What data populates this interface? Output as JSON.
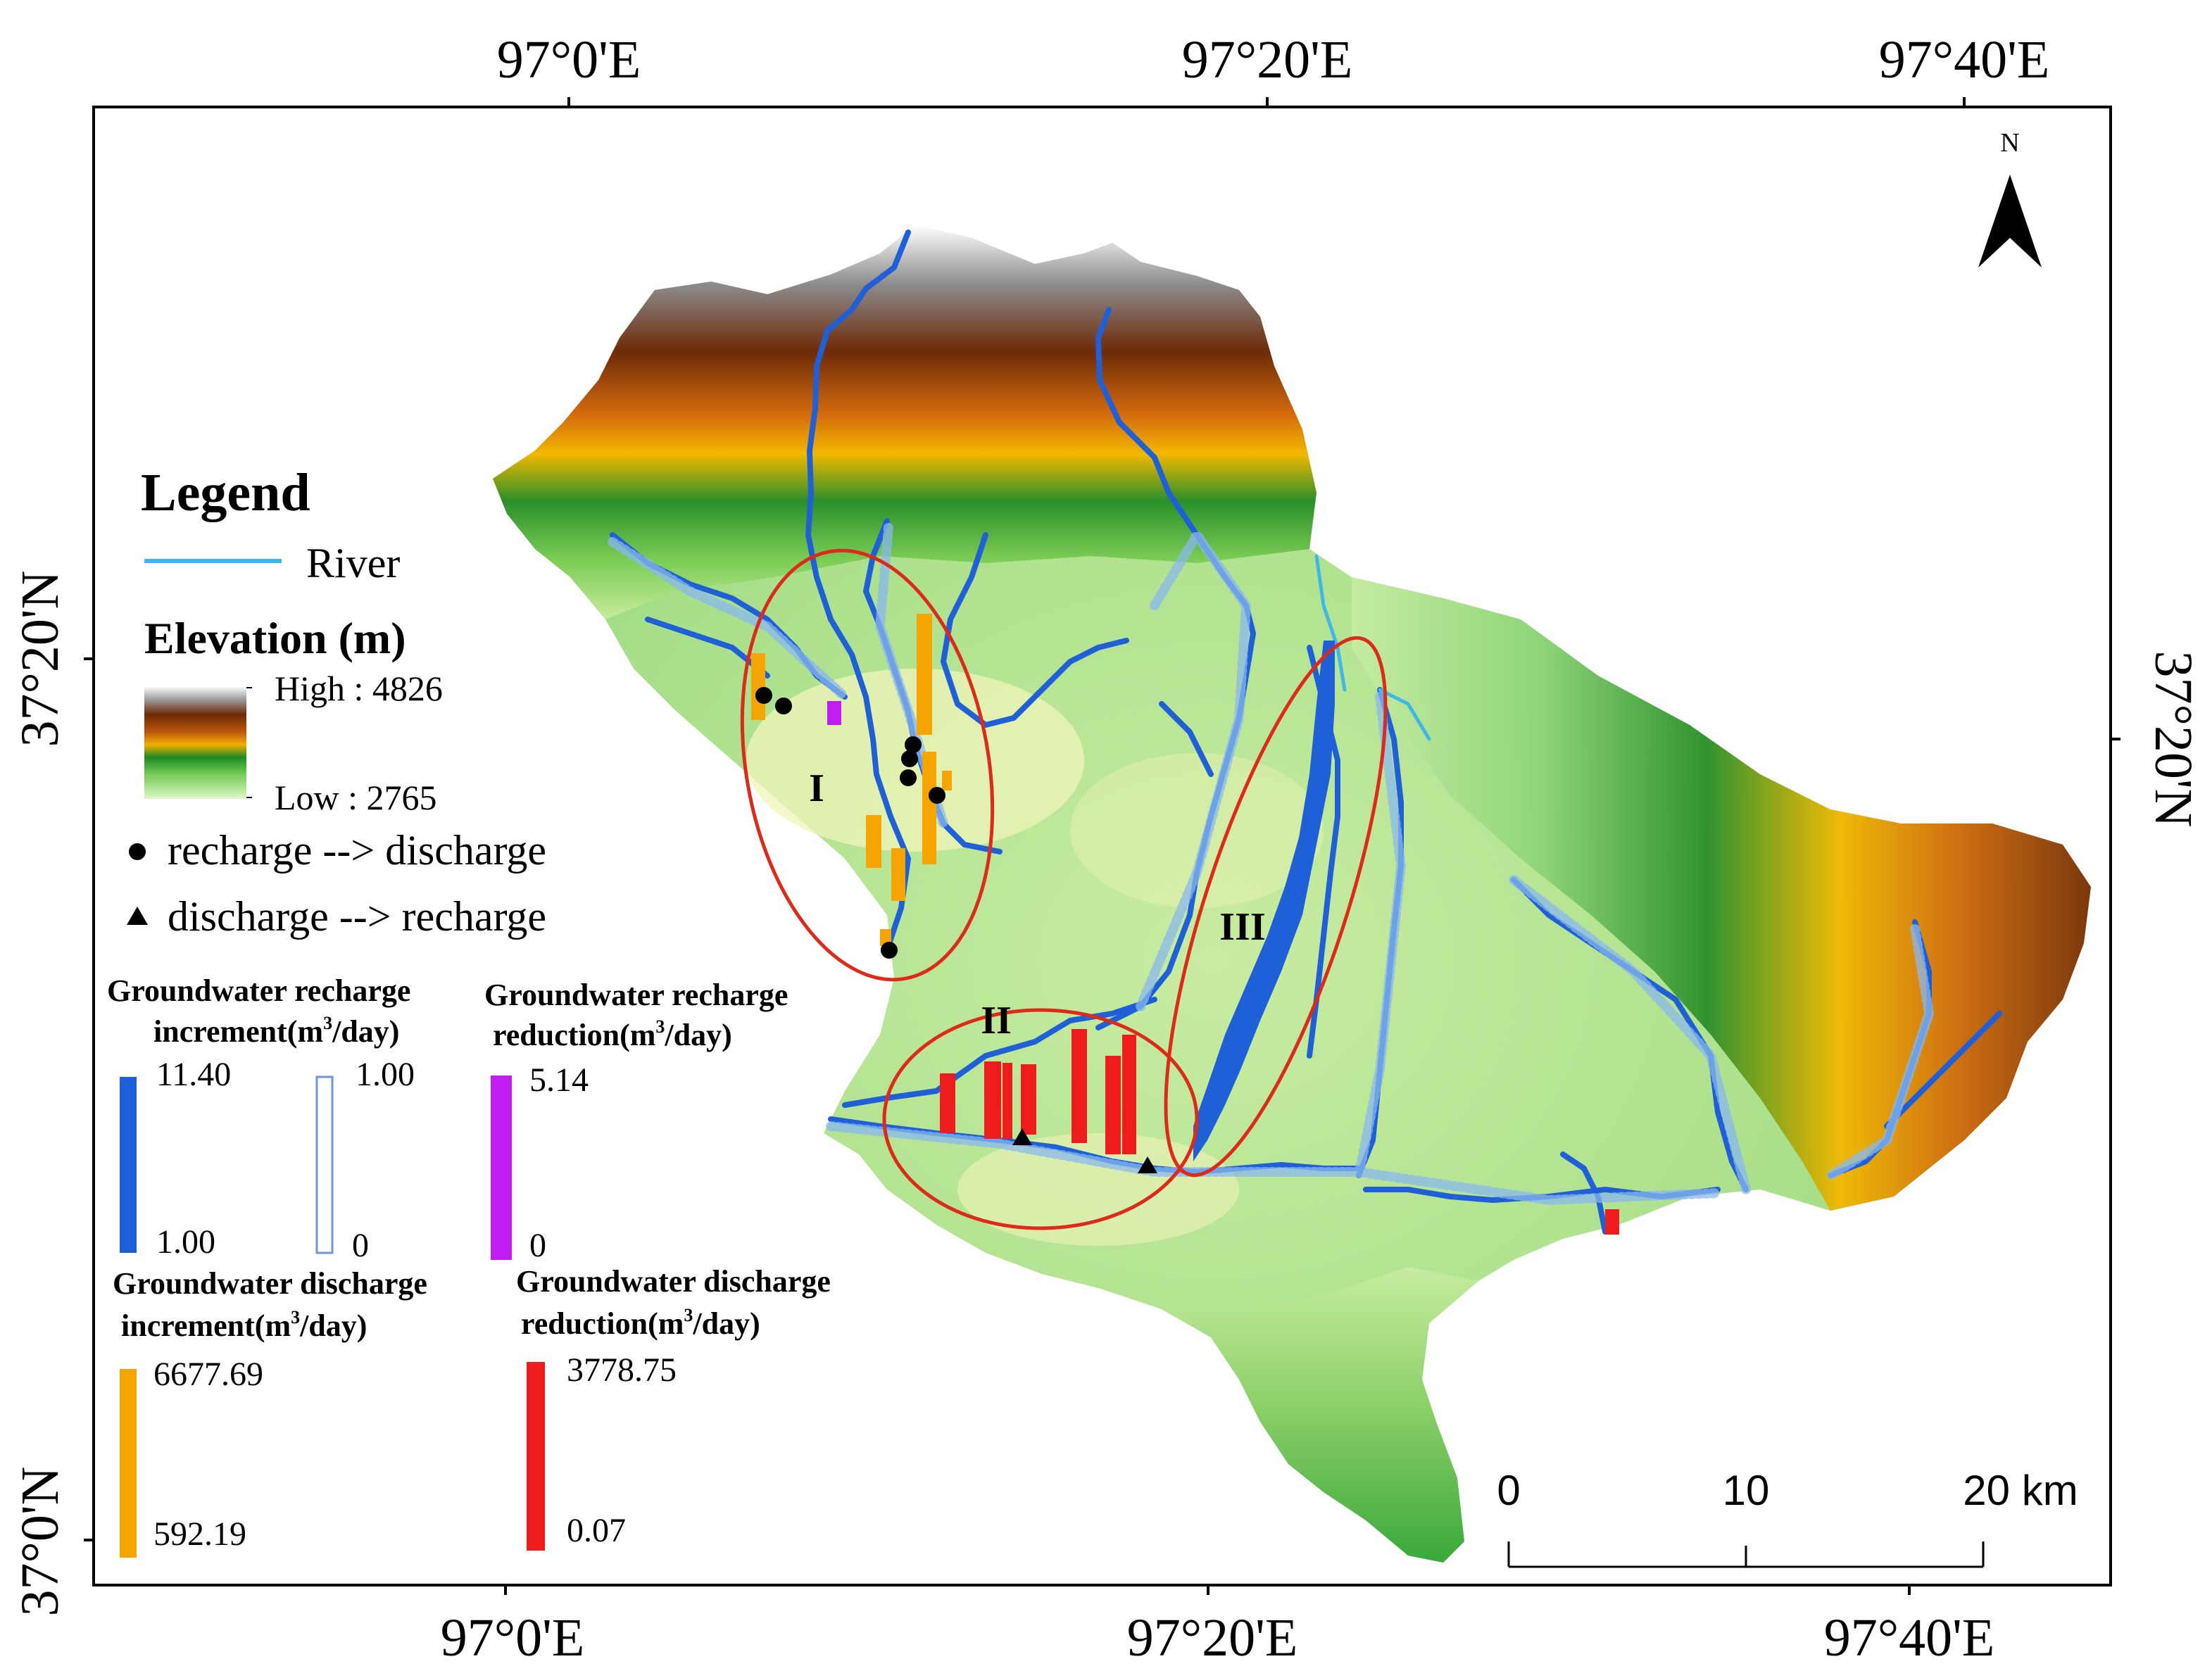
{
  "axes": {
    "top_labels": [
      "97°0'E",
      "97°20'E",
      "97°40'E"
    ],
    "bottom_labels": [
      "97°0'E",
      "97°20'E",
      "97°40'E"
    ],
    "left_labels": [
      "37°20'N",
      "37°0'N"
    ],
    "right_labels": [
      "37°20'N"
    ]
  },
  "north_arrow": {
    "label": "N",
    "icon": "north-arrow-icon"
  },
  "legend": {
    "title": "Legend",
    "river_label": "River",
    "elevation_title": "Elevation (m)",
    "elevation_high": "High : 4826",
    "elevation_low": "Low : 2765",
    "recharge_to_discharge": "recharge --> discharge",
    "discharge_to_recharge": "discharge --> recharge",
    "gw_recharge_increment_title_1": "Groundwater recharge",
    "gw_recharge_increment_title_2": "increment(m",
    "gw_recharge_increment_title_3": "/day)",
    "gw_recharge_increment_blue_max": "11.40",
    "gw_recharge_increment_blue_min": "1.00",
    "gw_recharge_increment_outline_max": "1.00",
    "gw_recharge_increment_outline_min": "0",
    "gw_recharge_reduction_title_1": "Groundwater recharge",
    "gw_recharge_reduction_title_2": "reduction(m",
    "gw_recharge_reduction_title_3": "/day)",
    "gw_recharge_reduction_max": "5.14",
    "gw_recharge_reduction_min": "0",
    "gw_discharge_increment_title_1": "Groundwater discharge",
    "gw_discharge_increment_title_2": "increment(m",
    "gw_discharge_increment_title_3": "/day)",
    "gw_discharge_increment_max": "6677.69",
    "gw_discharge_increment_min": "592.19",
    "gw_discharge_reduction_title_1": "Groundwater discharge",
    "gw_discharge_reduction_title_2": "reduction(m",
    "gw_discharge_reduction_title_3": "/day)",
    "gw_discharge_reduction_max": "3778.75",
    "gw_discharge_reduction_min": "0.07",
    "superscript": "3"
  },
  "zones": [
    "I",
    "II",
    "III"
  ],
  "scale_bar": {
    "labels": [
      "0",
      "10",
      "20 km"
    ]
  },
  "colors": {
    "river": "#3fb8e8",
    "river_dark": "#1f5fd8",
    "recharge_increment": "#1f5fd8",
    "recharge_reduction": "#c21df0",
    "discharge_increment": "#f5a400",
    "discharge_reduction": "#ee1c1c",
    "zone_ellipse": "#dd2a1a"
  }
}
